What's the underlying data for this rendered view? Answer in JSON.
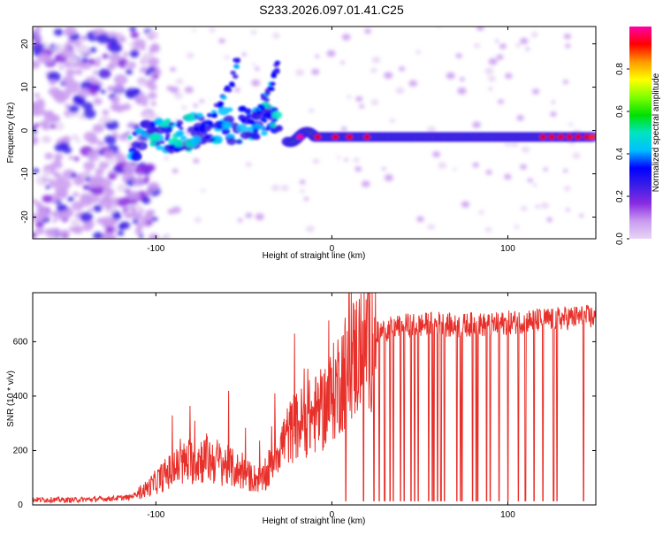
{
  "figure_title": "S233.2026.097.01.41.C25",
  "chart_data": [
    {
      "type": "heatmap",
      "name": "spectrogram",
      "title": "S233.2026.097.01.41.C25",
      "xlabel": "Height of straight line (km)",
      "ylabel": "Frequency (Hz)",
      "xlim": [
        -170,
        150
      ],
      "ylim": [
        -25,
        24
      ],
      "xticks": [
        -100,
        0,
        100
      ],
      "yticks": [
        -20,
        -10,
        0,
        10,
        20
      ],
      "xtick_labels": [
        "-100",
        "0",
        "100"
      ],
      "ytick_labels": [
        "-20",
        "-10",
        "0",
        "10",
        "20"
      ],
      "colorbar": {
        "label": "Normalized spectral amplitude",
        "range": [
          0.0,
          1.0
        ],
        "ticks": [
          0.0,
          0.2,
          0.4,
          0.6,
          0.8
        ],
        "tick_labels": [
          "0.0",
          "0.2",
          "0.4",
          "0.6",
          "0.8"
        ],
        "colors": [
          "#e8d5f5",
          "#c99bf0",
          "#8a2be2",
          "#3b1ee6",
          "#0000ff",
          "#00bfff",
          "#00e5c0",
          "#00e000",
          "#7fff00",
          "#ffff00",
          "#ff9900",
          "#ff0000",
          "#ff00aa"
        ]
      },
      "features": {
        "noise_region_x": [
          -170,
          -110
        ],
        "main_line": {
          "x_start": -25,
          "x_end": 148,
          "frequency": -1.5,
          "peak_amplitude": 1.0
        },
        "rising_branch_1": {
          "x": [
            -75,
            -65,
            -58,
            -52
          ],
          "frequency": [
            0,
            5,
            10,
            18
          ]
        },
        "rising_branch_2": {
          "x": [
            -45,
            -40,
            -35,
            -30
          ],
          "frequency": [
            2,
            6,
            10,
            16
          ]
        }
      }
    },
    {
      "type": "line",
      "name": "snr",
      "xlabel": "Height of straight line (km)",
      "ylabel": "SNR (10 * v/v)",
      "xlim": [
        -170,
        150
      ],
      "ylim": [
        0,
        780
      ],
      "xticks": [
        -100,
        0,
        100
      ],
      "yticks": [
        0,
        200,
        400,
        600
      ],
      "xtick_labels": [
        "-100",
        "0",
        "100"
      ],
      "ytick_labels": [
        "0",
        "200",
        "400",
        "600"
      ],
      "line_color": "#e8302a",
      "series": [
        {
          "name": "SNR",
          "x": [
            -170,
            -150,
            -130,
            -115,
            -105,
            -95,
            -85,
            -75,
            -65,
            -55,
            -45,
            -38,
            -32,
            -25,
            -18,
            -10,
            -5,
            0,
            5,
            10,
            15,
            20,
            25,
            30,
            35,
            40,
            50,
            60,
            70,
            80,
            90,
            100,
            110,
            120,
            130,
            140,
            150
          ],
          "values": [
            20,
            18,
            22,
            28,
            60,
            110,
            150,
            170,
            160,
            130,
            100,
            90,
            190,
            260,
            300,
            330,
            350,
            400,
            470,
            520,
            560,
            600,
            630,
            640,
            650,
            660,
            660,
            670,
            655,
            665,
            660,
            670,
            675,
            680,
            685,
            690,
            690
          ]
        }
      ],
      "dropouts_x": [
        8,
        18,
        24,
        27,
        30,
        33,
        35,
        39,
        41,
        45,
        47,
        49,
        55,
        57,
        58,
        60,
        62,
        64,
        71,
        73,
        74,
        80,
        82,
        83,
        88,
        90,
        95,
        100,
        106,
        110,
        115,
        120,
        126,
        128,
        143
      ]
    }
  ]
}
